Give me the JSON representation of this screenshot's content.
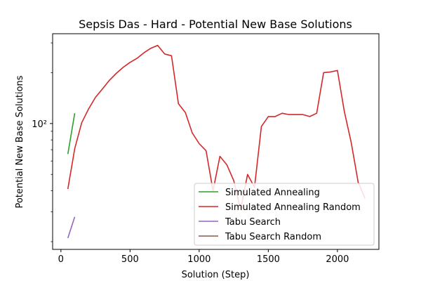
{
  "chart_data": {
    "type": "line",
    "title": "Sepsis Das - Hard - Potential New Base Solutions",
    "xlabel": "Solution (Step)",
    "ylabel": "Potential New Base Solutions",
    "xlim": [
      -60,
      2300
    ],
    "ylim": [
      18,
      340
    ],
    "yscale": "log",
    "grid": false,
    "legend_position": "lower right",
    "x_ticks": [
      0,
      500,
      1000,
      1500,
      2000
    ],
    "x_tick_labels": [
      "0",
      "500",
      "1000",
      "1500",
      "2000"
    ],
    "y_ticks": [
      100
    ],
    "y_tick_labels": [
      "10²"
    ],
    "series": [
      {
        "name": "Simulated Annealing",
        "color": "#2ca02c",
        "x": [
          50,
          100
        ],
        "y": [
          66,
          115
        ]
      },
      {
        "name": "Simulated Annealing Random",
        "color": "#d62728",
        "x": [
          50,
          100,
          150,
          200,
          250,
          300,
          350,
          400,
          450,
          500,
          550,
          600,
          650,
          700,
          750,
          800,
          850,
          900,
          950,
          1000,
          1050,
          1100,
          1150,
          1200,
          1250,
          1300,
          1350,
          1400,
          1450,
          1500,
          1550,
          1600,
          1650,
          1700,
          1750,
          1800,
          1850,
          1900,
          1950,
          2000,
          2050,
          2100,
          2150,
          2200
        ],
        "y": [
          41,
          71,
          101,
          122,
          143,
          160,
          180,
          198,
          215,
          230,
          243,
          262,
          279,
          290,
          258,
          252,
          131,
          116,
          88,
          76,
          69,
          40,
          64,
          57,
          46,
          31,
          50,
          42,
          96,
          110,
          110,
          115,
          113,
          113,
          113,
          110,
          115,
          200,
          202,
          206,
          118,
          77,
          45,
          36
        ]
      },
      {
        "name": "Tabu Search",
        "color": "#9467bd",
        "x": [
          50,
          100
        ],
        "y": [
          21,
          28
        ]
      },
      {
        "name": "Tabu Search Random",
        "color": "#8c564b",
        "x": [],
        "y": []
      }
    ]
  }
}
